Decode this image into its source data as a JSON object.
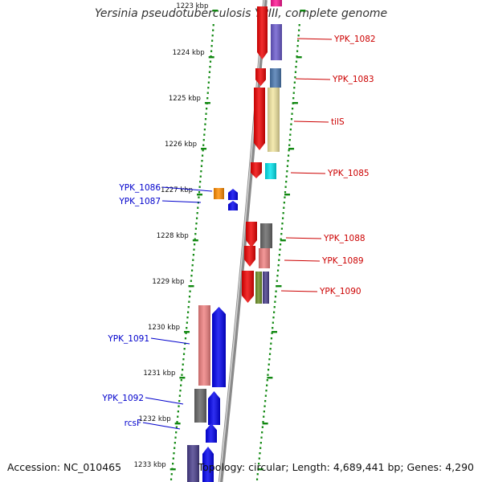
{
  "title": "Yersinia pseudotuberculosis YPIII, complete genome",
  "footer": {
    "accession": "Accession: NC_010465",
    "topology": "Topology: circular; Length: 4,689,441 bp; Genes: 4,290"
  },
  "colors": {
    "backbone": "#8a8a8a",
    "tick": "#118811",
    "plus_label": "#cc0000",
    "minus_label": "#0000cc"
  },
  "ruler": [
    "1223 kbp",
    "1224 kbp",
    "1225 kbp",
    "1226 kbp",
    "1227 kbp",
    "1228 kbp",
    "1229 kbp",
    "1230 kbp",
    "1231 kbp",
    "1232 kbp",
    "1233 kbp"
  ],
  "plus_genes": [
    "YPK_1082",
    "YPK_1083",
    "tilS",
    "YPK_1085",
    "YPK_1088",
    "YPK_1089",
    "YPK_1090"
  ],
  "minus_genes": [
    "YPK_1086",
    "YPK_1087",
    "YPK_1091",
    "YPK_1092",
    "rcsF"
  ]
}
